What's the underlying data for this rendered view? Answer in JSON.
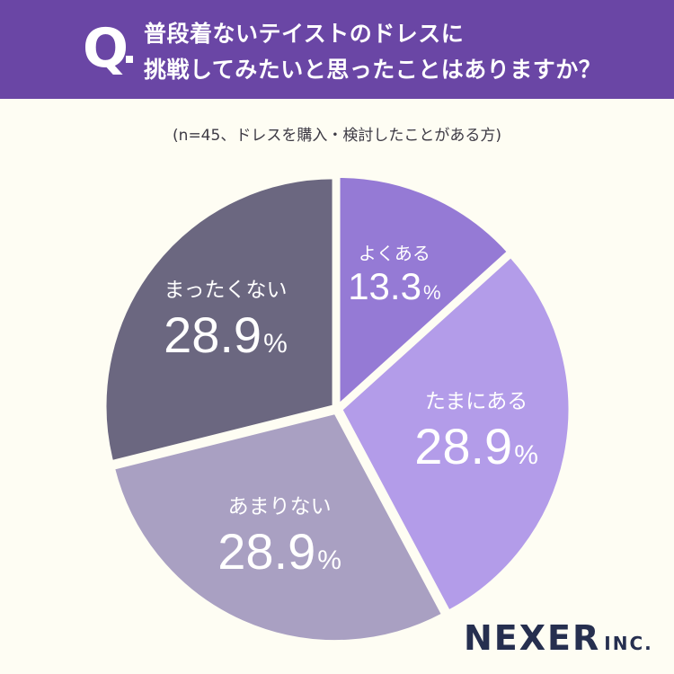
{
  "header": {
    "q_mark": "Q",
    "question_line1": "普段着ないテイストのドレスに",
    "question_line2": "挑戦してみたいと思ったことはありますか？"
  },
  "subtitle": "(n=45、ドレスを購入・検討したことがある方)",
  "chart_data": {
    "type": "pie",
    "title": "普段着ないテイストのドレスに挑戦してみたいと思ったことはありますか？",
    "subtitle": "(n=45、ドレスを購入・検討したことがある方)",
    "categories": [
      "よくある",
      "たまにある",
      "あまりない",
      "まったくない"
    ],
    "values": [
      13.3,
      28.9,
      28.9,
      28.9
    ],
    "value_labels": [
      "13.3",
      "28.9",
      "28.9",
      "28.9"
    ],
    "unit": "%",
    "colors": [
      "#957ad5",
      "#b39ce9",
      "#a9a0c2",
      "#6b6780"
    ]
  },
  "logo": {
    "main": "NEXER",
    "sub": "INC."
  }
}
